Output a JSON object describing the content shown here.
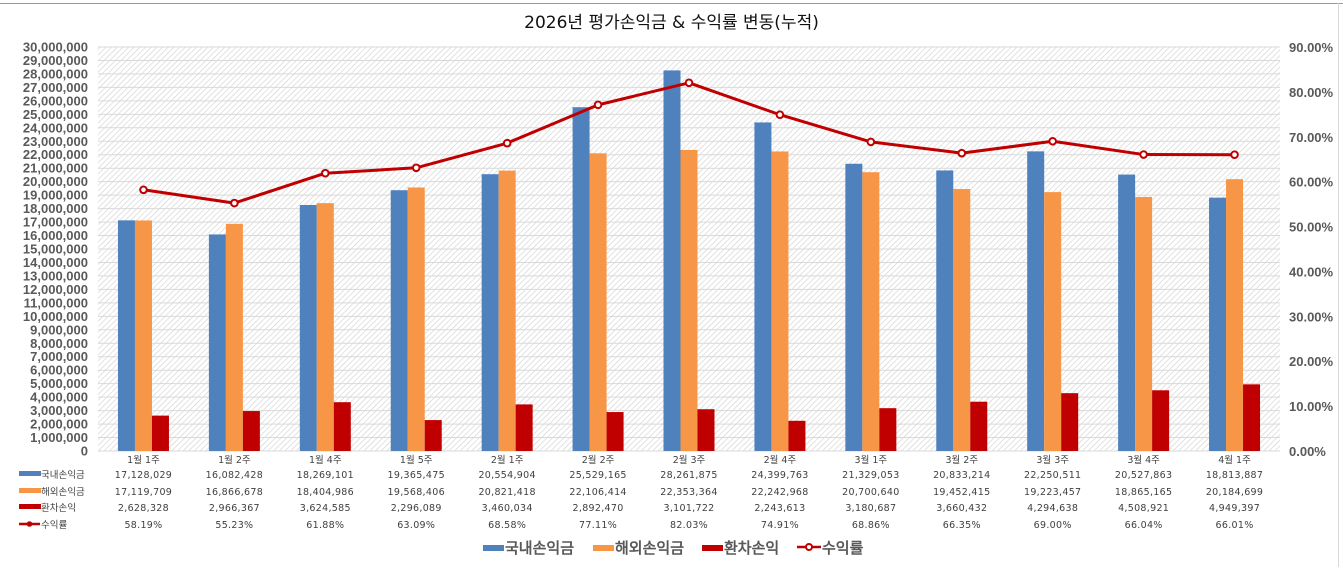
{
  "chart_data": {
    "type": "bar",
    "title": "2026년 평가손익금 & 수익률 변동(누적)",
    "categories": [
      "1월 1주",
      "1월 2주",
      "1월 4주",
      "1월 5주",
      "2월 1주",
      "2월 2주",
      "2월 3주",
      "2월 4주",
      "3월 1주",
      "3월 2주",
      "3월 3주",
      "3월 4주",
      "4월 1주"
    ],
    "series": [
      {
        "name": "국내손익금",
        "kind": "bar",
        "axis": "left",
        "color": "#4f81bd",
        "values": [
          17128029,
          16082428,
          18269101,
          19365475,
          20554904,
          25529165,
          28261875,
          24399763,
          21329053,
          20833214,
          22250511,
          20527863,
          18813887
        ],
        "labels": [
          "17,128,029",
          "16,082,428",
          "18,269,101",
          "19,365,475",
          "20,554,904",
          "25,529,165",
          "28,261,875",
          "24,399,763",
          "21,329,053",
          "20,833,214",
          "22,250,511",
          "20,527,863",
          "18,813,887"
        ]
      },
      {
        "name": "해외손익금",
        "kind": "bar",
        "axis": "left",
        "color": "#f79646",
        "values": [
          17119709,
          16866678,
          18404986,
          19568406,
          20821418,
          22106414,
          22353364,
          22242968,
          20700640,
          19452415,
          19223457,
          18865165,
          20184699
        ],
        "labels": [
          "17,119,709",
          "16,866,678",
          "18,404,986",
          "19,568,406",
          "20,821,418",
          "22,106,414",
          "22,353,364",
          "22,242,968",
          "20,700,640",
          "19,452,415",
          "19,223,457",
          "18,865,165",
          "20,184,699"
        ]
      },
      {
        "name": "환차손익",
        "kind": "bar",
        "axis": "left",
        "color": "#c00000",
        "values": [
          2628328,
          2966367,
          3624585,
          2296089,
          3460034,
          2892470,
          3101722,
          2243613,
          3180687,
          3660432,
          4294638,
          4508921,
          4949397
        ],
        "labels": [
          "2,628,328",
          "2,966,367",
          "3,624,585",
          "2,296,089",
          "3,460,034",
          "2,892,470",
          "3,101,722",
          "2,243,613",
          "3,180,687",
          "3,660,432",
          "4,294,638",
          "4,508,921",
          "4,949,397"
        ]
      },
      {
        "name": "수익률",
        "kind": "line",
        "axis": "right",
        "color": "#c00000",
        "values": [
          58.19,
          55.23,
          61.88,
          63.09,
          68.58,
          77.11,
          82.03,
          74.91,
          68.86,
          66.35,
          69.0,
          66.04,
          66.01
        ],
        "labels": [
          "58.19%",
          "55.23%",
          "61.88%",
          "63.09%",
          "68.58%",
          "77.11%",
          "82.03%",
          "74.91%",
          "68.86%",
          "66.35%",
          "69.00%",
          "66.04%",
          "66.01%"
        ]
      }
    ],
    "ylim": [
      0,
      30000000
    ],
    "y_ticks": [
      "0",
      "1,000,000",
      "2,000,000",
      "3,000,000",
      "4,000,000",
      "5,000,000",
      "6,000,000",
      "7,000,000",
      "8,000,000",
      "9,000,000",
      "10,000,000",
      "11,000,000",
      "12,000,000",
      "13,000,000",
      "14,000,000",
      "15,000,000",
      "16,000,000",
      "17,000,000",
      "18,000,000",
      "19,000,000",
      "20,000,000",
      "21,000,000",
      "22,000,000",
      "23,000,000",
      "24,000,000",
      "25,000,000",
      "26,000,000",
      "27,000,000",
      "28,000,000",
      "29,000,000",
      "30,000,000"
    ],
    "y2lim": [
      0,
      90
    ],
    "y2_ticks": [
      "0.00%",
      "10.00%",
      "20.00%",
      "30.00%",
      "40.00%",
      "50.00%",
      "60.00%",
      "70.00%",
      "80.00%",
      "90.00%"
    ],
    "xlabel": "",
    "ylabel": "",
    "grid": true,
    "data_table": true,
    "legend_position": "bottom"
  }
}
